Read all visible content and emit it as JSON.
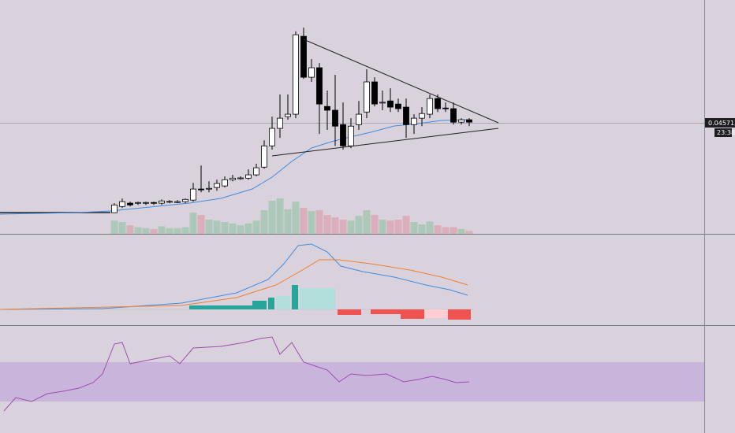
{
  "chart_data": {
    "type": "candlestick",
    "ylim": [
      -0.005,
      0.101
    ],
    "open": [
      0.0049,
      0.0077,
      0.0092,
      0.0092,
      0.0092,
      0.0095,
      0.0092,
      0.0099,
      0.0095,
      0.0099,
      0.0106,
      0.0156,
      0.0156,
      0.0163,
      0.017,
      0.0198,
      0.0205,
      0.0205,
      0.022,
      0.0255,
      0.0351,
      0.043,
      0.0483,
      0.0494,
      0.0846,
      0.0661,
      0.0704,
      0.0529,
      0.0512,
      0.0447,
      0.0351,
      0.0447,
      0.0504,
      0.064,
      0.0547,
      0.0554,
      0.054,
      0.0526,
      0.0447,
      0.0476,
      0.0494,
      0.0565,
      0.0522,
      0.0519,
      0.0458,
      0.0469
    ],
    "high": [
      0.0092,
      0.0113,
      0.0099,
      0.0099,
      0.0099,
      0.0099,
      0.0109,
      0.0106,
      0.0106,
      0.0113,
      0.0184,
      0.0262,
      0.0191,
      0.0198,
      0.0213,
      0.022,
      0.0213,
      0.0245,
      0.027,
      0.0376,
      0.0483,
      0.0583,
      0.0583,
      0.0868,
      0.0885,
      0.0743,
      0.0725,
      0.0601,
      0.0672,
      0.0547,
      0.0476,
      0.0554,
      0.0697,
      0.0661,
      0.0601,
      0.0611,
      0.0565,
      0.0565,
      0.0494,
      0.0526,
      0.0583,
      0.0583,
      0.0547,
      0.0547,
      0.0476,
      0.0476
    ],
    "low": [
      0.0049,
      0.007,
      0.0077,
      0.0084,
      0.0084,
      0.0084,
      0.0084,
      0.0092,
      0.0092,
      0.0092,
      0.0099,
      0.0141,
      0.0141,
      0.0148,
      0.0163,
      0.0191,
      0.0198,
      0.0198,
      0.0213,
      0.0248,
      0.0334,
      0.0387,
      0.0469,
      0.0476,
      0.0654,
      0.064,
      0.0405,
      0.0423,
      0.0351,
      0.0334,
      0.0341,
      0.0423,
      0.0476,
      0.0529,
      0.0512,
      0.0504,
      0.0504,
      0.0387,
      0.0405,
      0.044,
      0.0476,
      0.0504,
      0.0504,
      0.0447,
      0.0447,
      0.044
    ],
    "close": [
      0.0084,
      0.0099,
      0.0084,
      0.0095,
      0.0095,
      0.0092,
      0.0102,
      0.01,
      0.0099,
      0.0109,
      0.0156,
      0.0152,
      0.0159,
      0.0181,
      0.0198,
      0.0205,
      0.0206,
      0.022,
      0.0252,
      0.0351,
      0.043,
      0.0476,
      0.0494,
      0.0853,
      0.0661,
      0.0704,
      0.054,
      0.0512,
      0.044,
      0.0351,
      0.044,
      0.0494,
      0.064,
      0.054,
      0.0548,
      0.0526,
      0.0519,
      0.0447,
      0.0476,
      0.0497,
      0.0565,
      0.0519,
      0.0519,
      0.0458,
      0.0469,
      0.0458
    ],
    "volume": [
      28,
      25,
      18,
      14,
      12,
      10,
      16,
      12,
      12,
      14,
      45,
      40,
      30,
      28,
      25,
      22,
      18,
      22,
      28,
      50,
      70,
      75,
      52,
      68,
      55,
      48,
      50,
      40,
      35,
      30,
      28,
      38,
      50,
      40,
      30,
      28,
      30,
      38,
      25,
      20,
      26,
      18,
      14,
      14,
      10,
      6
    ],
    "vlim": [
      0,
      100
    ],
    "up_color": "#ffffff",
    "down_color": "#000000",
    "last_price": 0.0457132,
    "countdown": "23:38"
  }
}
